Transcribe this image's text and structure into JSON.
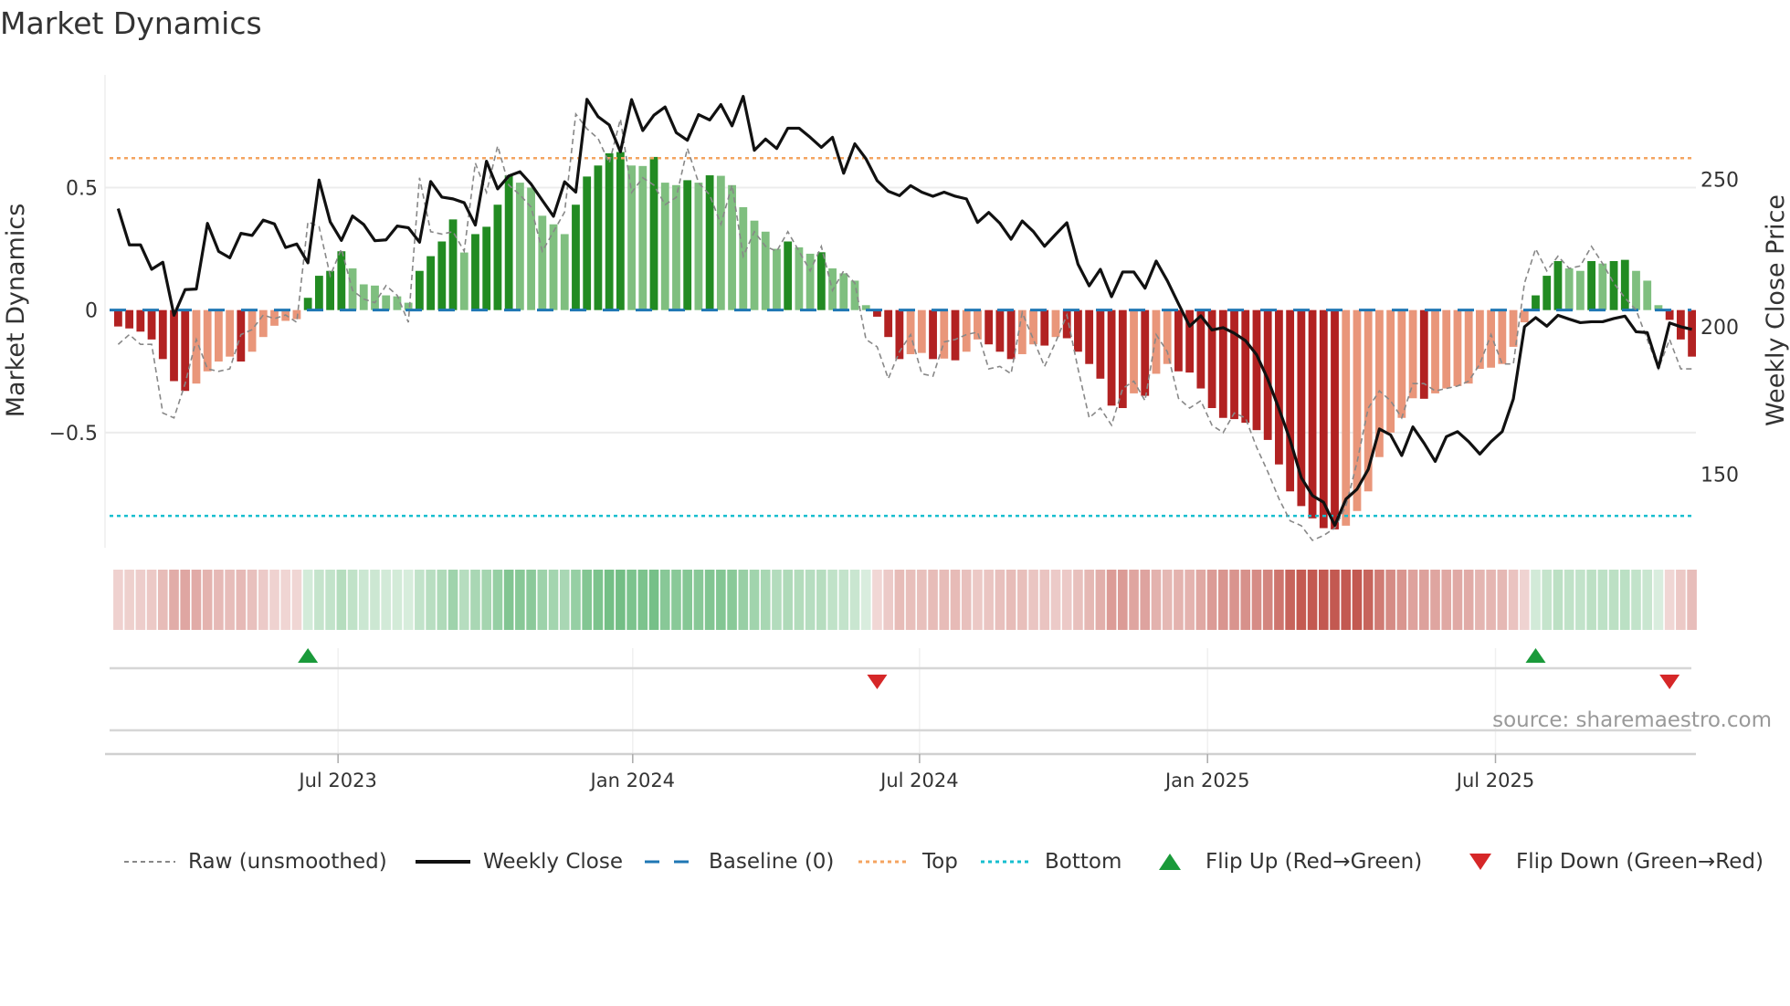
{
  "title": "Market Dynamics",
  "source": "source: sharemaestro.com",
  "chart_data": {
    "type": "bar",
    "title": "Market Dynamics",
    "ylabel": "Market Dynamics",
    "y2label": "Weekly Close Price",
    "ylim": [
      -0.97,
      0.96
    ],
    "y2lim": [
      125,
      285.5
    ],
    "yticks": [
      {
        "value": 0.5,
        "label": "0.5"
      },
      {
        "value": 0,
        "label": "0"
      },
      {
        "value": -0.5,
        "label": "−0.5"
      }
    ],
    "y2ticks": [
      {
        "value": 250,
        "label": "250"
      },
      {
        "value": 200,
        "label": "200"
      },
      {
        "value": 150,
        "label": "150"
      }
    ],
    "xticks": [
      {
        "week": 19.7,
        "label": "Jul 2023"
      },
      {
        "week": 46.1,
        "label": "Jan 2024"
      },
      {
        "week": 71.8,
        "label": "Jul 2024"
      },
      {
        "week": 97.6,
        "label": "Jan 2025"
      },
      {
        "week": 123.4,
        "label": "Jul 2025"
      }
    ],
    "baseline": 0,
    "top": 0.62,
    "bottom": -0.84,
    "dynamics": [
      -0.067,
      -0.075,
      -0.088,
      -0.12,
      -0.2,
      -0.29,
      -0.33,
      -0.3,
      -0.25,
      -0.21,
      -0.19,
      -0.21,
      -0.17,
      -0.11,
      -0.064,
      -0.044,
      -0.037,
      0.05,
      0.14,
      0.16,
      0.24,
      0.17,
      0.105,
      0.1,
      0.06,
      0.056,
      0.03,
      0.16,
      0.22,
      0.28,
      0.37,
      0.235,
      0.31,
      0.34,
      0.43,
      0.55,
      0.52,
      0.5,
      0.385,
      0.35,
      0.31,
      0.43,
      0.545,
      0.59,
      0.64,
      0.645,
      0.59,
      0.588,
      0.625,
      0.52,
      0.51,
      0.53,
      0.52,
      0.55,
      0.548,
      0.51,
      0.42,
      0.365,
      0.32,
      0.25,
      0.28,
      0.256,
      0.23,
      0.236,
      0.17,
      0.15,
      0.12,
      0.02,
      -0.027,
      -0.11,
      -0.2,
      -0.18,
      -0.175,
      -0.2,
      -0.198,
      -0.205,
      -0.17,
      -0.12,
      -0.14,
      -0.17,
      -0.2,
      -0.18,
      -0.14,
      -0.145,
      -0.11,
      -0.115,
      -0.17,
      -0.22,
      -0.28,
      -0.39,
      -0.4,
      -0.34,
      -0.35,
      -0.26,
      -0.22,
      -0.25,
      -0.255,
      -0.32,
      -0.4,
      -0.44,
      -0.445,
      -0.46,
      -0.49,
      -0.53,
      -0.63,
      -0.74,
      -0.8,
      -0.85,
      -0.89,
      -0.895,
      -0.88,
      -0.82,
      -0.74,
      -0.6,
      -0.5,
      -0.44,
      -0.36,
      -0.362,
      -0.34,
      -0.32,
      -0.31,
      -0.3,
      -0.24,
      -0.235,
      -0.22,
      -0.15,
      -0.05,
      0.06,
      0.14,
      0.2,
      0.17,
      0.16,
      0.2,
      0.19,
      0.2,
      0.205,
      0.16,
      0.12,
      0.02,
      -0.04,
      -0.12,
      -0.19
    ],
    "raw": [
      -0.14,
      -0.1,
      -0.14,
      -0.14,
      -0.42,
      -0.44,
      -0.3,
      -0.12,
      -0.24,
      -0.25,
      -0.24,
      -0.1,
      -0.08,
      -0.02,
      -0.035,
      -0.02,
      -0.05,
      0.36,
      0.34,
      0.14,
      0.25,
      0.08,
      0.045,
      0.03,
      0.1,
      0.06,
      -0.05,
      0.54,
      0.32,
      0.31,
      0.32,
      0.24,
      0.6,
      0.48,
      0.67,
      0.51,
      0.47,
      0.42,
      0.24,
      0.32,
      0.4,
      0.8,
      0.74,
      0.7,
      0.6,
      0.78,
      0.48,
      0.54,
      0.51,
      0.43,
      0.46,
      0.66,
      0.52,
      0.47,
      0.35,
      0.51,
      0.22,
      0.32,
      0.26,
      0.24,
      0.32,
      0.24,
      0.16,
      0.26,
      0.08,
      0.16,
      0.11,
      -0.12,
      -0.15,
      -0.28,
      -0.17,
      -0.1,
      -0.26,
      -0.27,
      -0.13,
      -0.12,
      -0.1,
      -0.09,
      -0.24,
      -0.23,
      -0.26,
      -0.01,
      -0.12,
      -0.23,
      -0.13,
      -0.02,
      -0.24,
      -0.44,
      -0.4,
      -0.47,
      -0.32,
      -0.29,
      -0.37,
      -0.1,
      -0.17,
      -0.36,
      -0.4,
      -0.37,
      -0.47,
      -0.5,
      -0.42,
      -0.44,
      -0.56,
      -0.66,
      -0.77,
      -0.86,
      -0.88,
      -0.94,
      -0.92,
      -0.89,
      -0.8,
      -0.62,
      -0.4,
      -0.33,
      -0.37,
      -0.44,
      -0.3,
      -0.3,
      -0.33,
      -0.32,
      -0.31,
      -0.29,
      -0.22,
      -0.1,
      -0.22,
      -0.22,
      0.11,
      0.25,
      0.16,
      0.22,
      0.17,
      0.18,
      0.26,
      0.19,
      0.11,
      0.05,
      0.0,
      -0.12,
      -0.24,
      -0.12,
      -0.24,
      -0.24
    ],
    "close": [
      240.1,
      227.8,
      227.8,
      219.5,
      221.9,
      203.9,
      212.6,
      212.8,
      235.1,
      225.6,
      223.4,
      231.7,
      231.0,
      236.2,
      234.9,
      226.9,
      228.1,
      221.7,
      249.8,
      235.6,
      229.3,
      237.6,
      234.7,
      229.2,
      229.5,
      234.2,
      233.6,
      228.7,
      249.3,
      244.0,
      243.4,
      242.1,
      234.5,
      256.2,
      246.8,
      251.2,
      252.6,
      248.4,
      242.9,
      237.5,
      249.2,
      245.7,
      277.2,
      271.3,
      268.5,
      259.4,
      277.1,
      266.6,
      271.8,
      274.6,
      265.9,
      263.3,
      272.0,
      270.2,
      275.4,
      268.2,
      278.2,
      259.9,
      263.7,
      260.5,
      267.4,
      267.4,
      264.3,
      260.9,
      264.3,
      252.1,
      262.1,
      257.0,
      249.6,
      246.0,
      244.5,
      247.9,
      245.7,
      244.3,
      245.7,
      244.3,
      243.4,
      235.4,
      238.8,
      235.1,
      229.7,
      235.9,
      232.3,
      227.3,
      231.4,
      235.3,
      221.2,
      213.9,
      219.5,
      210.2,
      218.6,
      218.6,
      213.1,
      222.3,
      215.6,
      207.8,
      200.2,
      203.7,
      198.9,
      199.7,
      197.8,
      195.3,
      190.5,
      182.2,
      172.2,
      161.6,
      148.8,
      142.7,
      140.4,
      132.6,
      141.5,
      144.9,
      151.6,
      165.3,
      163.3,
      156.3,
      166.0,
      160.5,
      154.3,
      162.7,
      164.4,
      161.0,
      156.8,
      161.0,
      164.4,
      175.5,
      200.0,
      203.1,
      200.2,
      203.9,
      202.6,
      201.4,
      201.7,
      201.7,
      202.8,
      203.6,
      198.3,
      198.0,
      186.1,
      201.3,
      200.0,
      199.1
    ],
    "flips": [
      {
        "week": 17,
        "type": "up"
      },
      {
        "week": 68,
        "type": "down"
      },
      {
        "week": 127,
        "type": "up"
      },
      {
        "week": 139,
        "type": "down"
      }
    ],
    "legend": {
      "raw": "Raw (unsmoothed)",
      "close": "Weekly Close",
      "baseline": "Baseline (0)",
      "top": "Top",
      "bottom": "Bottom",
      "flip_up": "Flip Up (Red→Green)",
      "flip_down": "Flip Down (Green→Red)"
    },
    "colors": {
      "pos_rising": "#228b22",
      "pos_falling": "#7fbf7f",
      "neg_falling": "#b22222",
      "neg_rising": "#e9967a",
      "close": "#111111",
      "raw": "#888888",
      "baseline": "#1f77b4",
      "top": "#f4a460",
      "bottom": "#17becf",
      "flip_up": "#1a9a3a",
      "flip_down": "#d62728"
    }
  }
}
